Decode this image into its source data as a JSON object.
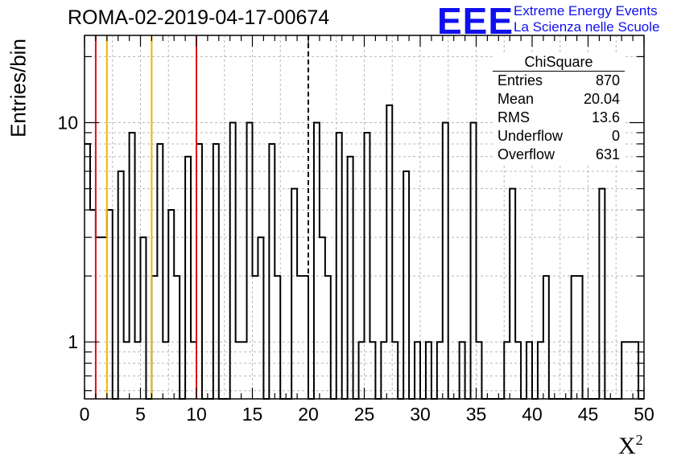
{
  "chart_data": {
    "type": "histogram",
    "title": "ROMA-02-2019-04-17-00674",
    "xlabel": "X",
    "xlabel_sup": "2",
    "ylabel": "Entries/bin",
    "xlim": [
      0,
      50
    ],
    "ylim": [
      0.55,
      25
    ],
    "y_scale": "log",
    "grid": true,
    "bin_width": 0.5,
    "x_ticks": [
      "0",
      "5",
      "10",
      "15",
      "20",
      "25",
      "30",
      "35",
      "40",
      "45",
      "50"
    ],
    "y_ticks": [
      "1",
      "10"
    ],
    "bins": [
      [
        0.0,
        8
      ],
      [
        0.5,
        4
      ],
      [
        1.0,
        3
      ],
      [
        1.5,
        3
      ],
      [
        2.0,
        4
      ],
      [
        2.5,
        0
      ],
      [
        3.0,
        6
      ],
      [
        3.5,
        1
      ],
      [
        4.0,
        9
      ],
      [
        4.5,
        1
      ],
      [
        5.0,
        3
      ],
      [
        5.5,
        0
      ],
      [
        6.0,
        2
      ],
      [
        6.5,
        8
      ],
      [
        7.0,
        1
      ],
      [
        7.5,
        4
      ],
      [
        8.0,
        2
      ],
      [
        8.5,
        0
      ],
      [
        9.0,
        7
      ],
      [
        9.5,
        1
      ],
      [
        10.0,
        8
      ],
      [
        10.5,
        0
      ],
      [
        11.0,
        0
      ],
      [
        11.5,
        8
      ],
      [
        12.0,
        0
      ],
      [
        12.5,
        0
      ],
      [
        13.0,
        10
      ],
      [
        13.5,
        1
      ],
      [
        14.0,
        1
      ],
      [
        14.5,
        10
      ],
      [
        15.0,
        2
      ],
      [
        15.5,
        3
      ],
      [
        16.0,
        0
      ],
      [
        16.5,
        8
      ],
      [
        17.0,
        2
      ],
      [
        17.5,
        0
      ],
      [
        18.0,
        0
      ],
      [
        18.5,
        5
      ],
      [
        19.0,
        2
      ],
      [
        19.5,
        2
      ],
      [
        20.0,
        0
      ],
      [
        20.5,
        10
      ],
      [
        21.0,
        3
      ],
      [
        21.5,
        2
      ],
      [
        22.0,
        0
      ],
      [
        22.5,
        9
      ],
      [
        23.0,
        0
      ],
      [
        23.5,
        7
      ],
      [
        24.0,
        0
      ],
      [
        24.5,
        1
      ],
      [
        25.0,
        9
      ],
      [
        25.5,
        1
      ],
      [
        26.0,
        0
      ],
      [
        26.5,
        1
      ],
      [
        27.0,
        12
      ],
      [
        27.5,
        1
      ],
      [
        28.0,
        0
      ],
      [
        28.5,
        6
      ],
      [
        29.0,
        0
      ],
      [
        29.5,
        1
      ],
      [
        30.0,
        0
      ],
      [
        30.5,
        1
      ],
      [
        31.0,
        0
      ],
      [
        31.5,
        1
      ],
      [
        32.0,
        10
      ],
      [
        32.5,
        0
      ],
      [
        33.0,
        0
      ],
      [
        33.5,
        1
      ],
      [
        34.0,
        0
      ],
      [
        34.5,
        10
      ],
      [
        35.0,
        1
      ],
      [
        35.5,
        0
      ],
      [
        36.0,
        0
      ],
      [
        36.5,
        0
      ],
      [
        37.0,
        0
      ],
      [
        37.5,
        1
      ],
      [
        38.0,
        5
      ],
      [
        38.5,
        1
      ],
      [
        39.0,
        0
      ],
      [
        39.5,
        1
      ],
      [
        40.0,
        0
      ],
      [
        40.5,
        1
      ],
      [
        41.0,
        2
      ],
      [
        41.5,
        0
      ],
      [
        42.0,
        0
      ],
      [
        42.5,
        0
      ],
      [
        43.0,
        0
      ],
      [
        43.5,
        2
      ],
      [
        44.0,
        2
      ],
      [
        44.5,
        0
      ],
      [
        45.0,
        0
      ],
      [
        45.5,
        0
      ],
      [
        46.0,
        5
      ],
      [
        46.5,
        0
      ],
      [
        47.0,
        0
      ],
      [
        47.5,
        0
      ],
      [
        48.0,
        1
      ],
      [
        48.5,
        1
      ],
      [
        49.0,
        1
      ],
      [
        49.5,
        0
      ]
    ],
    "vertical_lines": [
      {
        "x": 1.0,
        "color": "#dd1111",
        "style": "solid"
      },
      {
        "x": 2.0,
        "color": "#f0b400",
        "style": "solid"
      },
      {
        "x": 6.0,
        "color": "#f0b400",
        "style": "solid"
      },
      {
        "x": 10.0,
        "color": "#dd1111",
        "style": "solid"
      },
      {
        "x": 20.0,
        "color": "#000000",
        "style": "dashed"
      }
    ],
    "stats_box": {
      "title": "ChiSquare",
      "rows": [
        {
          "label": "Entries",
          "value": "870"
        },
        {
          "label": "Mean",
          "value": "20.04"
        },
        {
          "label": "RMS",
          "value": "13.6"
        },
        {
          "label": "Underflow",
          "value": "0"
        },
        {
          "label": "Overflow",
          "value": "631"
        }
      ]
    }
  },
  "branding": {
    "logo": "EEE",
    "line1": "Extreme Energy Events",
    "line2": "La Scienza nelle Scuole",
    "color": "#1010ee"
  }
}
